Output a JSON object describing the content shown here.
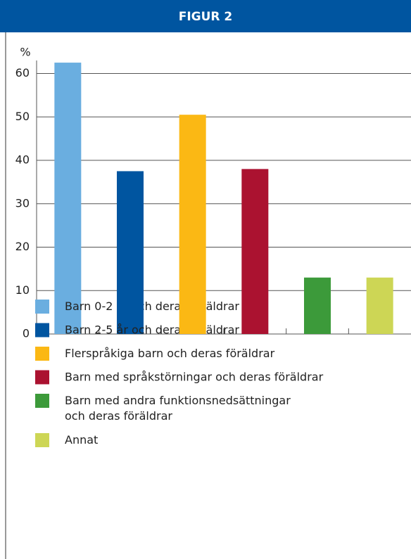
{
  "chart_data": {
    "type": "bar",
    "title": "FIGUR 2",
    "y_label": "%",
    "categories": [
      "Barn 0-2 år och deras föräldrar",
      "Barn 2-5 år och deras föräldrar",
      "Flerspråkiga barn och deras föräldrar",
      "Barn med språkstörningar och deras föräldrar",
      "Barn med andra funktionsnedsättningar\noch deras föräldrar",
      "Annat"
    ],
    "values": [
      62.5,
      37.5,
      50.5,
      38,
      13,
      13
    ],
    "colors": [
      "#6aaee0",
      "#0055a0",
      "#fbb814",
      "#ab1230",
      "#3c9a3a",
      "#cdd655"
    ],
    "ylim": [
      0,
      63
    ],
    "yticks": [
      0,
      10,
      20,
      30,
      40,
      50,
      60
    ],
    "grid": true
  }
}
